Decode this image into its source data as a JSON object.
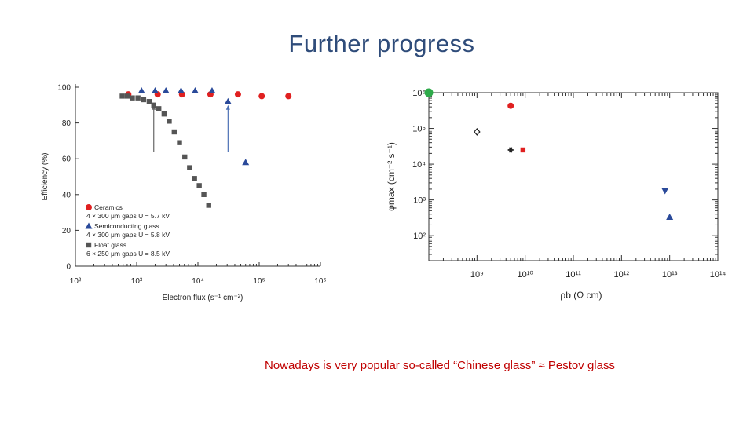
{
  "slide": {
    "title": "Further progress",
    "caption": "Nowadays is very popular so-called “Chinese glass” ≈ Pestov glass"
  },
  "chart_data": [
    {
      "type": "scatter",
      "xlabel": "Electron flux (s⁻¹ cm⁻²)",
      "ylabel": "Efficiency (%)",
      "x_scale": "log",
      "xlim": [
        100,
        1000000
      ],
      "ylim": [
        0,
        100
      ],
      "x_ticks": [
        {
          "v": 100,
          "label": "10²"
        },
        {
          "v": 1000,
          "label": "10³"
        },
        {
          "v": 10000,
          "label": "10⁴"
        },
        {
          "v": 100000,
          "label": "10⁵"
        },
        {
          "v": 1000000,
          "label": "10⁶"
        }
      ],
      "y_ticks": [
        {
          "v": 0,
          "label": "0"
        },
        {
          "v": 20,
          "label": "20"
        },
        {
          "v": 40,
          "label": "40"
        },
        {
          "v": 60,
          "label": "60"
        },
        {
          "v": 80,
          "label": "80"
        },
        {
          "v": 100,
          "label": "100"
        }
      ],
      "series": [
        {
          "name": "Ceramics",
          "detail": "4 × 300 μm gaps U = 5.7 kV",
          "marker": "circle",
          "color": "#e02020",
          "points": [
            [
              730,
              96
            ],
            [
              2200,
              96
            ],
            [
              5500,
              96
            ],
            [
              16000,
              96
            ],
            [
              45000,
              96
            ],
            [
              110000,
              95
            ],
            [
              300000,
              95
            ]
          ]
        },
        {
          "name": "Semiconducting glass",
          "detail": "4 × 300 μm gaps U = 5.8 kV",
          "marker": "triangle",
          "color": "#2a4a9a",
          "points": [
            [
              1200,
              98
            ],
            [
              2000,
              98
            ],
            [
              3000,
              98
            ],
            [
              5300,
              98
            ],
            [
              9000,
              98
            ],
            [
              17000,
              98
            ],
            [
              31000,
              92
            ],
            [
              60000,
              58
            ]
          ]
        },
        {
          "name": "Float glass",
          "detail": "6 × 250 μm gaps U = 8.5 kV",
          "marker": "square",
          "color": "#555555",
          "points": [
            [
              580,
              95
            ],
            [
              700,
              95
            ],
            [
              850,
              94
            ],
            [
              1050,
              94
            ],
            [
              1300,
              93
            ],
            [
              1600,
              92
            ],
            [
              1900,
              90
            ],
            [
              2300,
              88
            ],
            [
              2800,
              85
            ],
            [
              3400,
              81
            ],
            [
              4100,
              75
            ],
            [
              5000,
              69
            ],
            [
              6100,
              61
            ],
            [
              7300,
              55
            ],
            [
              8800,
              49
            ],
            [
              10500,
              45
            ],
            [
              12500,
              40
            ],
            [
              15000,
              34
            ]
          ]
        }
      ],
      "annotations": [
        {
          "type": "arrow",
          "x": 1900,
          "from_y": 64,
          "to_y": 90,
          "color": "#666666"
        },
        {
          "type": "arrow",
          "x": 31000,
          "from_y": 64,
          "to_y": 90,
          "color": "#4a6fb5"
        }
      ]
    },
    {
      "type": "scatter",
      "xlabel": "ρb (Ω cm)",
      "ylabel": "φmax (cm⁻² s⁻¹)",
      "x_scale": "log",
      "y_scale": "log",
      "xlim": [
        100000000,
        100000000000000
      ],
      "ylim": [
        20,
        1000000
      ],
      "x_ticks": [
        {
          "v": 1000000000,
          "label": "10⁹"
        },
        {
          "v": 10000000000,
          "label": "10¹⁰"
        },
        {
          "v": 100000000000,
          "label": "10¹¹"
        },
        {
          "v": 1000000000000,
          "label": "10¹²"
        },
        {
          "v": 10000000000000,
          "label": "10¹³"
        },
        {
          "v": 100000000000000,
          "label": "10¹⁴"
        }
      ],
      "y_ticks": [
        {
          "v": 100,
          "label": "10²"
        },
        {
          "v": 1000,
          "label": "10³"
        },
        {
          "v": 10000,
          "label": "10⁴"
        },
        {
          "v": 100000,
          "label": "10⁵"
        },
        {
          "v": 1000000,
          "label": "10⁶"
        }
      ],
      "points": [
        {
          "x": 100000000,
          "y": 1000000,
          "marker": "circle-large",
          "color": "#2eaa4a"
        },
        {
          "x": 1000000000,
          "y": 80000,
          "marker": "diamond-open",
          "color": "#222222"
        },
        {
          "x": 5000000000,
          "y": 430000,
          "marker": "circle",
          "color": "#e02020"
        },
        {
          "x": 5000000000,
          "y": 25000,
          "marker": "star",
          "color": "#222222"
        },
        {
          "x": 9000000000,
          "y": 25000,
          "marker": "square",
          "color": "#e02020"
        },
        {
          "x": 8000000000000,
          "y": 1800,
          "marker": "triangle-down",
          "color": "#2a4a9a"
        },
        {
          "x": 10000000000000,
          "y": 330,
          "marker": "triangle",
          "color": "#2a4a9a"
        }
      ]
    }
  ]
}
